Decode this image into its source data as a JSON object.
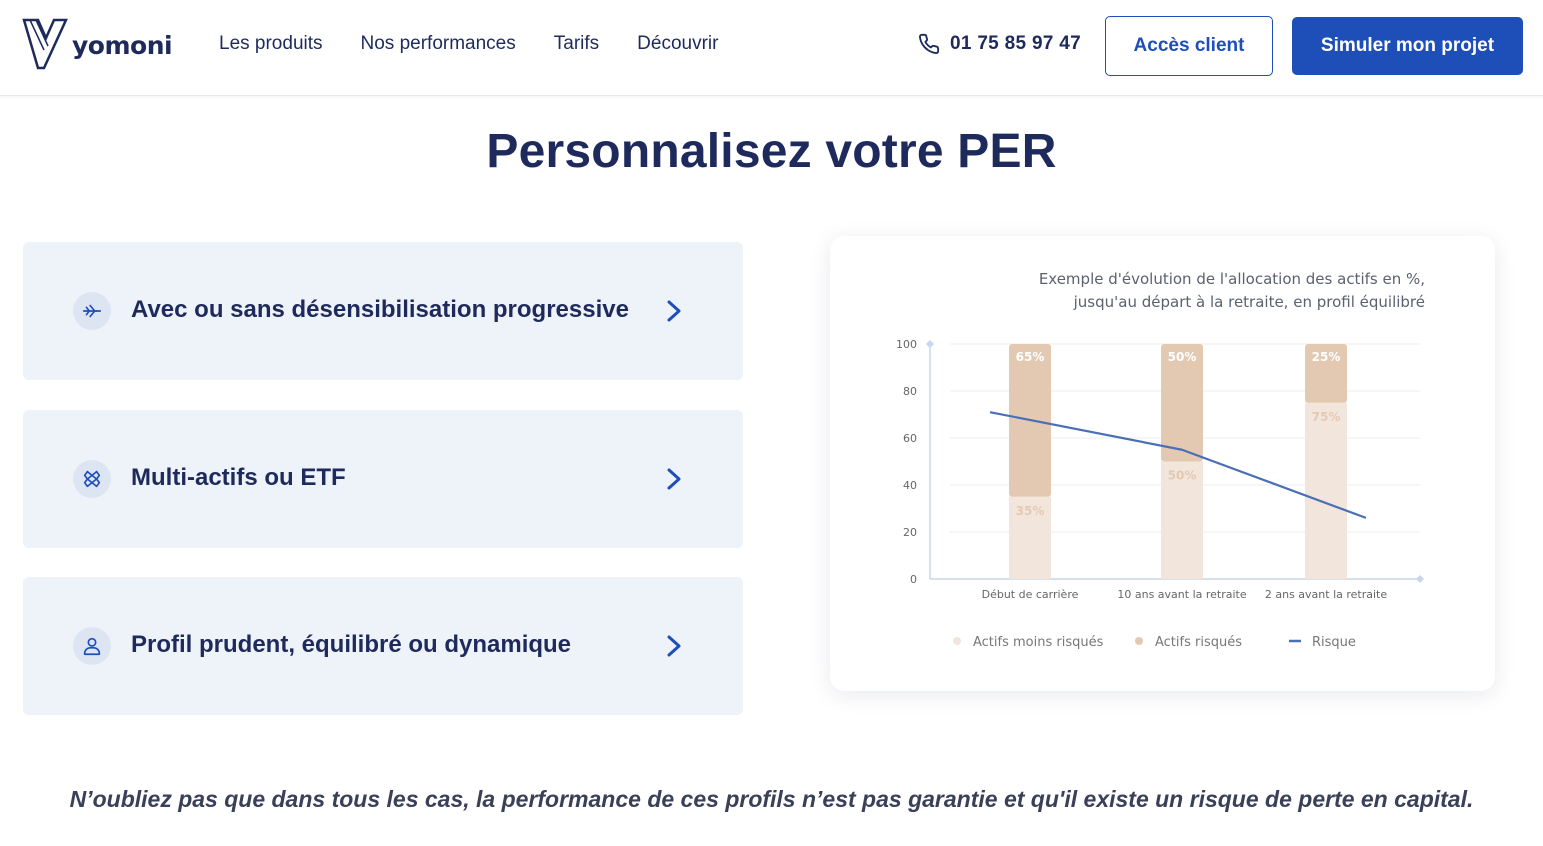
{
  "header": {
    "logo_text": "yomoni",
    "nav": [
      "Les produits",
      "Nos performances",
      "Tarifs",
      "Découvrir"
    ],
    "phone": "01 75 85 97 47",
    "client_button": "Accès client",
    "cta_button": "Simuler mon projet",
    "accent_color": "#1e4fb8"
  },
  "main": {
    "title": "Personnalisez votre PER",
    "cards": [
      {
        "label": "Avec ou sans désensibilisation progressive",
        "icon": "plane-icon"
      },
      {
        "label": "Multi-actifs ou ETF",
        "icon": "layers-icon"
      },
      {
        "label": "Profil prudent, équilibré ou dynamique",
        "icon": "user-icon"
      }
    ],
    "note": "N’oubliez pas que dans tous les cas, la performance de ces profils n’est pas garantie et qu'il existe un risque de perte en capital."
  },
  "chart_data": {
    "type": "bar",
    "title_lines": [
      "Exemple d'évolution de l'allocation des actifs en %,",
      "jusqu'au départ à la retraite, en profil équilibré"
    ],
    "categories": [
      "Début de carrière",
      "10 ans avant la retraite",
      "2 ans avant la retraite"
    ],
    "yticks": [
      0,
      20,
      40,
      60,
      80,
      100
    ],
    "ylim": [
      0,
      100
    ],
    "stacked": true,
    "series": [
      {
        "name": "Actifs moins risqués",
        "values": [
          35,
          50,
          75
        ],
        "labels": [
          "35%",
          "50%",
          "75%"
        ],
        "color": "#f2e6dc"
      },
      {
        "name": "Actifs risqués",
        "values": [
          65,
          50,
          25
        ],
        "labels": [
          "65%",
          "50%",
          "25%"
        ],
        "color": "#e4c9b2"
      }
    ],
    "line": {
      "name": "Risque",
      "values": [
        71,
        55,
        26
      ],
      "color": "#4a6fb5"
    },
    "grid": true,
    "legend_position": "bottom"
  }
}
